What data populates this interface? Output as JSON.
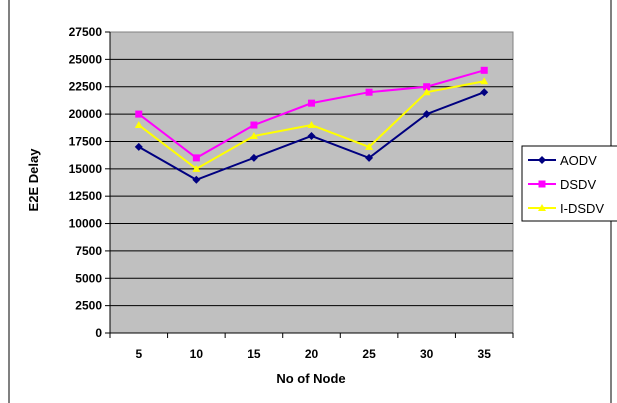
{
  "chart_data": {
    "type": "line",
    "title": "",
    "xlabel": "No of Node",
    "ylabel": "E2E Delay",
    "categories": [
      "5",
      "10",
      "15",
      "20",
      "25",
      "30",
      "35"
    ],
    "ylim": [
      0,
      27500
    ],
    "yticks": [
      0,
      2500,
      5000,
      7500,
      10000,
      12500,
      15000,
      17500,
      20000,
      22500,
      25000,
      27500
    ],
    "grid": true,
    "legend_position": "right",
    "plot_background": "#c0c0c0",
    "series": [
      {
        "name": "AODV",
        "color": "#000080",
        "marker": "diamond",
        "values": [
          17000,
          14000,
          16000,
          18000,
          16000,
          20000,
          22000
        ]
      },
      {
        "name": "DSDV",
        "color": "#ff00ff",
        "marker": "square",
        "values": [
          20000,
          16000,
          19000,
          21000,
          22000,
          22500,
          24000
        ]
      },
      {
        "name": "I-DSDV",
        "color": "#ffff00",
        "marker": "triangle",
        "values": [
          19000,
          15000,
          18000,
          19000,
          17000,
          22000,
          23000
        ]
      }
    ]
  }
}
